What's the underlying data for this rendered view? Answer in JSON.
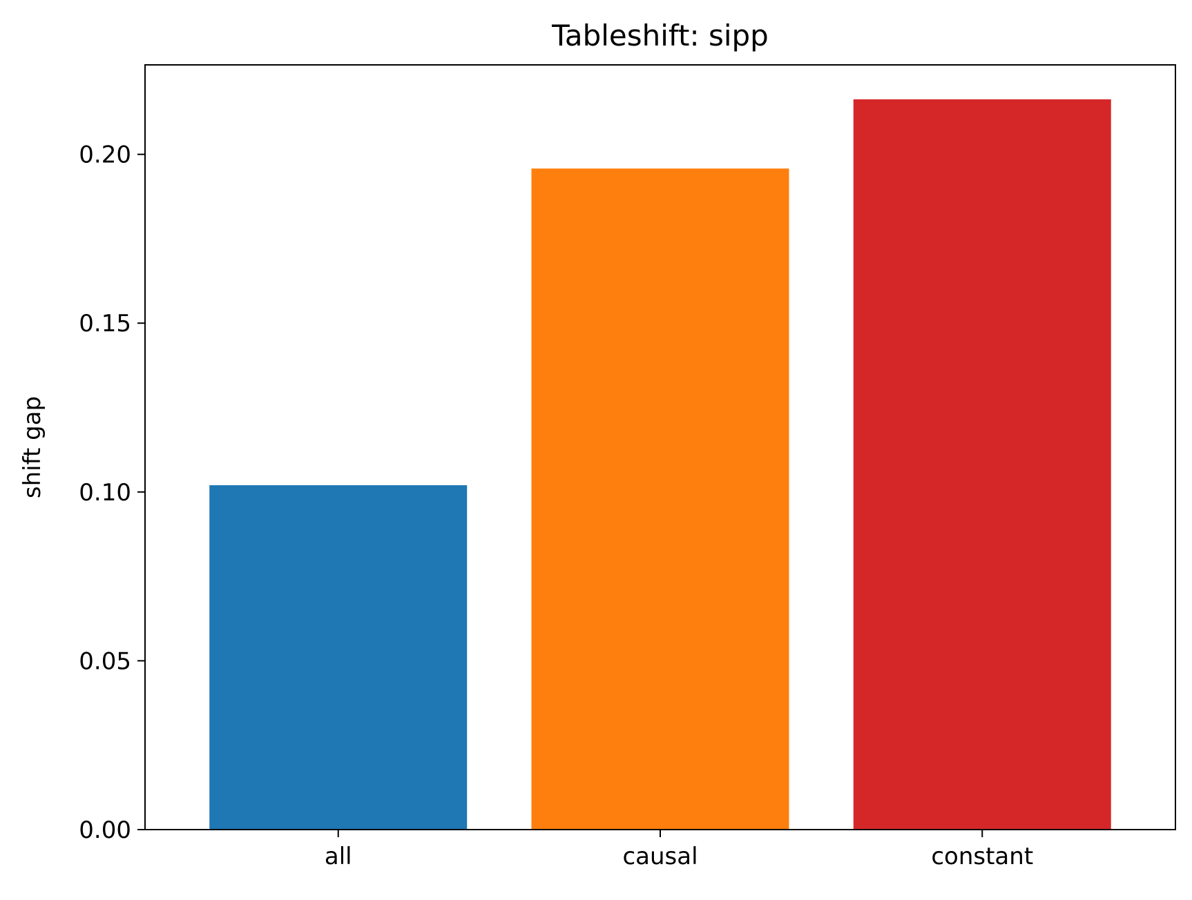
{
  "chart_data": {
    "type": "bar",
    "title": "Tableshift: sipp",
    "xlabel": "",
    "ylabel": "shift gap",
    "categories": [
      "all",
      "causal",
      "constant"
    ],
    "values": [
      0.102,
      0.1958,
      0.2163
    ],
    "colors": [
      "#1f77b4",
      "#ff7f0e",
      "#d62728"
    ],
    "ylim": [
      0,
      0.2265
    ],
    "yticks": [
      0.0,
      0.05,
      0.1,
      0.15,
      0.2
    ],
    "ytick_labels": [
      "0.00",
      "0.05",
      "0.10",
      "0.15",
      "0.20"
    ],
    "grid": false,
    "legend": "none"
  }
}
